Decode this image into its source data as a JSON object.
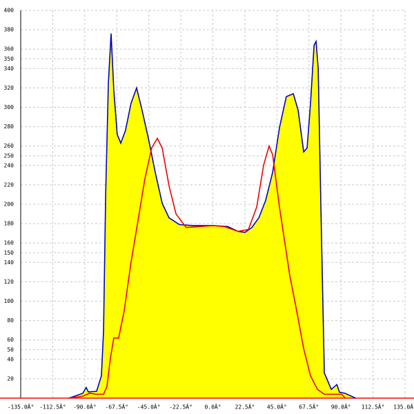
{
  "chart_data": {
    "type": "line",
    "xlim": [
      -135,
      135
    ],
    "ylim": [
      0,
      400
    ],
    "grid": true,
    "baseline_color": "#ff0000",
    "xticks": [
      {
        "value": -135,
        "label": "-135.0Â°"
      },
      {
        "value": -112.5,
        "label": "-112.5Â°"
      },
      {
        "value": -90,
        "label": "-90.0Â°"
      },
      {
        "value": -67.5,
        "label": "-67.5Â°"
      },
      {
        "value": -45,
        "label": "-45.0Â°"
      },
      {
        "value": -22.5,
        "label": "-22.5Â°"
      },
      {
        "value": 0,
        "label": "0.0Â°"
      },
      {
        "value": 22.5,
        "label": "22.5Â°"
      },
      {
        "value": 45,
        "label": "45.0Â°"
      },
      {
        "value": 67.5,
        "label": "67.5Â°"
      },
      {
        "value": 90,
        "label": "90.0Â°"
      },
      {
        "value": 112.5,
        "label": "112.5Â°"
      },
      {
        "value": 135,
        "label": "135.0Â°"
      }
    ],
    "yticks": [
      20,
      40,
      50,
      60,
      80,
      100,
      120,
      140,
      150,
      160,
      180,
      200,
      220,
      240,
      250,
      260,
      280,
      300,
      320,
      340,
      350,
      360,
      380,
      400
    ],
    "series": [
      {
        "color": "#0000cc",
        "fill": "#ffff00",
        "x": [
          -101,
          -91.4,
          -89,
          -87.5,
          -81.7,
          -78.3,
          -76.8,
          -75.3,
          -73.4,
          -71.5,
          -69.6,
          -67.2,
          -64.7,
          -61.4,
          -57.5,
          -53.6,
          -50.2,
          -45.3,
          -40.5,
          -35.6,
          -30.8,
          -23.5,
          -13.8,
          0,
          10.4,
          17.7,
          22.6,
          27.4,
          32.3,
          37.1,
          42,
          46.8,
          51.6,
          56.5,
          59.9,
          63.8,
          66.2,
          68.6,
          71.1,
          72.5,
          74,
          75.9,
          78.3,
          83.2,
          87.1,
          89,
          92.9,
          100.2
        ],
        "values": [
          0,
          5,
          11,
          6.5,
          7,
          23,
          69,
          211,
          325,
          376,
          318,
          272,
          263,
          276,
          304,
          320,
          300,
          268,
          233,
          201,
          186,
          179,
          178,
          178,
          177,
          172,
          171,
          176,
          186,
          204,
          233,
          279,
          311,
          314,
          297,
          254,
          258,
          304,
          364,
          368,
          340,
          197,
          26,
          9,
          14,
          6,
          5,
          0
        ]
      },
      {
        "color": "#ee0000",
        "x": [
          -101,
          -91.4,
          -86.6,
          -81.7,
          -76.8,
          -74.4,
          -72,
          -69.6,
          -66.2,
          -62.3,
          -57.5,
          -52.6,
          -47.8,
          -43,
          -39,
          -35.6,
          -30.8,
          -25.9,
          -18.7,
          -9,
          0,
          8,
          17.7,
          25,
          30.8,
          35.6,
          39.5,
          42,
          46.8,
          54.1,
          58.9,
          63.8,
          68.6,
          73.5,
          78.3,
          83.2,
          90.5,
          93
        ],
        "values": [
          0,
          2,
          5,
          4,
          4,
          12,
          41,
          62,
          62,
          90,
          140,
          183,
          226,
          258,
          268,
          258,
          219,
          190,
          176,
          177,
          178,
          177,
          172,
          174,
          197,
          240,
          260,
          251,
          197,
          126,
          90,
          51,
          23,
          9,
          4,
          4,
          4,
          0
        ]
      }
    ]
  }
}
